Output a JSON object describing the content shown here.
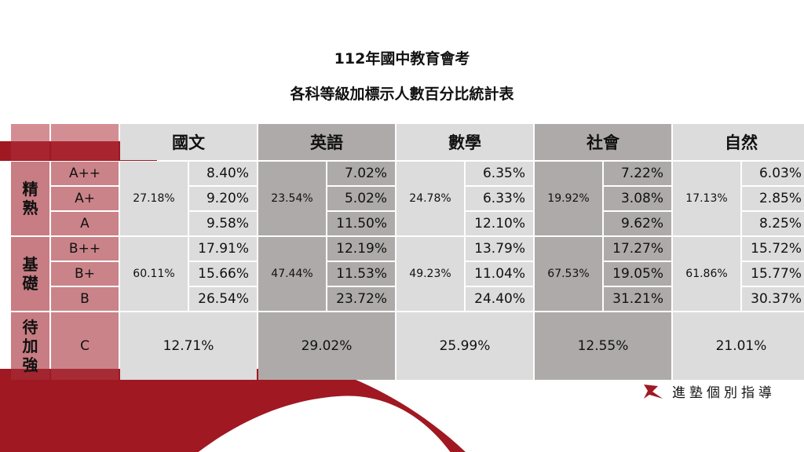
{
  "title": "112年國中教育會考",
  "subtitle": "各科等級加標示人數百分比統計表",
  "subjects": [
    "國文",
    "英語",
    "數學",
    "社會",
    "自然"
  ],
  "categories": [
    {
      "label": "精熟",
      "chars": [
        "精",
        "熟"
      ]
    },
    {
      "label": "基礎",
      "chars": [
        "基",
        "礎"
      ]
    },
    {
      "label": "待加強",
      "chars": [
        "待",
        "加",
        "強"
      ]
    }
  ],
  "grades": [
    "A++",
    "A+",
    "A",
    "B++",
    "B+",
    "B",
    "C"
  ],
  "proficient_totals": [
    "27.18%",
    "23.54%",
    "24.78%",
    "19.92%",
    "17.13%"
  ],
  "basic_totals": [
    "60.11%",
    "47.44%",
    "49.23%",
    "67.53%",
    "61.86%"
  ],
  "grade_values": {
    "A++": [
      "8.40%",
      "7.02%",
      "6.35%",
      "7.22%",
      "6.03%"
    ],
    "A+": [
      "9.20%",
      "5.02%",
      "6.33%",
      "3.08%",
      "2.85%"
    ],
    "A": [
      "9.58%",
      "11.50%",
      "12.10%",
      "9.62%",
      "8.25%"
    ],
    "B++": [
      "17.91%",
      "12.19%",
      "13.79%",
      "17.27%",
      "15.72%"
    ],
    "B+": [
      "15.66%",
      "11.53%",
      "11.04%",
      "19.05%",
      "15.77%"
    ],
    "B": [
      "26.54%",
      "23.72%",
      "24.40%",
      "31.21%",
      "30.37%"
    ],
    "C": [
      "12.71%",
      "29.02%",
      "25.99%",
      "12.55%",
      "21.01%"
    ]
  },
  "brand": {
    "name": "進塾個別指導",
    "icon": "brand-logo-icon"
  },
  "colors": {
    "accent_red": "#a01822",
    "header_light": "#dcdcdc",
    "header_dark": "#aeaaaa"
  }
}
